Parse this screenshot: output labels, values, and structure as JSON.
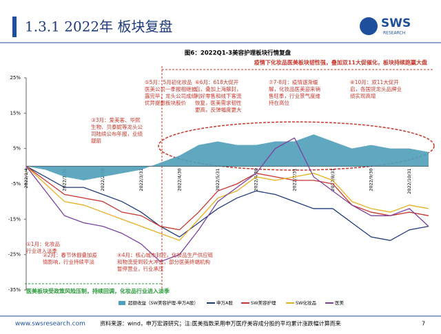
{
  "header": {
    "title": "1.3.1 2022年 板块复盘",
    "logo": "SWS",
    "logo_sub": "RESEARCH"
  },
  "chart_data": {
    "type": "line",
    "title": "图6：2022Q1-3美容护理板块行情复盘",
    "banner_top": "疫情下化妆品医美板块韧性强，叠加双11大促催化，板块持续跑赢大盘",
    "banner_bottom": "医美板块受政策风险压制，持续回调，化妆品行业进入淡季",
    "annotations": [
      "①1月：化妆品行业进入淡季",
      "②2月：春节休假叠加疫情影响，行业持续平淡",
      "③3月：爱美客、华熙生物、贝泰妮等龙头公司陆续公布年报，业绩靓丽",
      "④4月：核心城市封控，化妆品生产供应链和物流受到较大冲击，部分医美终端机构暂停营业，行业承压",
      "⑤5月：5月初化妆品医美公司一季报相继披露完毕，龙头公司成绩优异提振板块股价",
      "⑥6月：618大促开启，叠加上海解封，利好零售和线下客流恢复，医美需求韧性更高，反弹幅度更大",
      "⑦7-8月：疫情逐渐缓解，化妆品医美迎来销售旺季，行业景气度维持在高位",
      "⑧10月：双11大促开启，各国货龙头品牌业绩实现高增"
    ],
    "x": [
      "2022/1/4",
      null,
      "2022/1/31",
      null,
      "2022/2/28",
      null,
      "2022/3/31",
      null,
      "2022/4/30",
      null,
      "2022/5/31",
      null,
      "2022/6/30",
      null,
      "2022/7/31",
      null,
      "2022/8/31",
      null,
      "2022/9/30",
      null,
      "2022/10/31",
      null
    ],
    "series": [
      {
        "name": "超额收益（SW美容护理-申万A股）",
        "color": "#4f9fb8",
        "style": "area",
        "values": [
          0,
          -1,
          -3,
          -4,
          -3,
          -2,
          -1,
          1,
          3,
          6,
          7,
          6,
          6,
          7,
          7,
          9,
          7,
          5,
          6,
          5,
          5,
          4
        ]
      },
      {
        "name": "申万A股",
        "color": "#1f3a7a",
        "values": [
          0,
          -3,
          -6,
          -6,
          -8,
          -10,
          -13,
          -17,
          -20,
          -16,
          -12,
          -9,
          -7,
          -8,
          -10,
          -12,
          -12,
          -16,
          -20,
          -21,
          -18,
          -17
        ]
      },
      {
        "name": "SW美容护理",
        "color": "#c8372d",
        "values": [
          0,
          -4,
          -8,
          -9,
          -10,
          -13,
          -14,
          -17,
          -18,
          -13,
          -7,
          -5,
          -2,
          -3,
          -4,
          -4,
          -5,
          -11,
          -13,
          -14,
          -13,
          -14
        ]
      },
      {
        "name": "SW化妆品",
        "color": "#e8b020",
        "values": [
          0,
          -5,
          -10,
          -11,
          -13,
          -15,
          -17,
          -19,
          -21,
          -15,
          -9,
          -7,
          -3,
          -4,
          -3,
          -2,
          -4,
          -10,
          -12,
          -13,
          -11,
          -12
        ]
      },
      {
        "name": "医美",
        "color": "#7b3fa0",
        "values": [
          0,
          -7,
          -14,
          -16,
          -17,
          -19,
          -22,
          -27,
          -25,
          -18,
          -10,
          -6,
          -2,
          5,
          8,
          -3,
          -7,
          -11,
          -14,
          -14,
          -12,
          -17
        ]
      }
    ],
    "ylim": [
      -35,
      25
    ],
    "yticks": [
      {
        "value": 25,
        "label": "25%"
      },
      {
        "value": 15,
        "label": "15%"
      },
      {
        "value": 5,
        "label": "5%"
      },
      {
        "value": -5,
        "label": "-5%"
      },
      {
        "value": -15,
        "label": "-15%"
      },
      {
        "value": -25,
        "label": "-25%"
      },
      {
        "value": -35,
        "label": "-35%"
      }
    ],
    "grid": false
  },
  "footer": {
    "url": "www.swsresearch.com",
    "source": "资料来源：wind，申万宏源研究；注:医美指数采用申万医疗美容成分股的平均累计涨跌幅计算而来",
    "page": "7"
  }
}
